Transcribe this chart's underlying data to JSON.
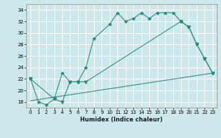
{
  "xlabel": "Humidex (Indice chaleur)",
  "bg_color": "#cce8ea",
  "grid_color": "#ffffff",
  "line_color": "#2e8b7a",
  "xlim": [
    -0.5,
    23.5
  ],
  "ylim": [
    17,
    35
  ],
  "yticks": [
    18,
    20,
    22,
    24,
    26,
    28,
    30,
    32,
    34
  ],
  "xticks": [
    0,
    1,
    2,
    3,
    4,
    5,
    6,
    7,
    8,
    9,
    10,
    11,
    12,
    13,
    14,
    15,
    16,
    17,
    18,
    19,
    20,
    21,
    22,
    23
  ],
  "line1_x": [
    0,
    1,
    2,
    3,
    4,
    5,
    6,
    7,
    8,
    10,
    11,
    12,
    13,
    14,
    15,
    16,
    17,
    18,
    19,
    20,
    21,
    22,
    23
  ],
  "line1_y": [
    22,
    18,
    17.5,
    18.5,
    23,
    21.5,
    21.5,
    24,
    29,
    31.5,
    33.5,
    32,
    32.5,
    33.5,
    32.5,
    33.5,
    33.5,
    33.5,
    32,
    31,
    28,
    25.5,
    23
  ],
  "line2_x": [
    0,
    3,
    4,
    5,
    6,
    7,
    19,
    20,
    21,
    22,
    23
  ],
  "line2_y": [
    22,
    18.5,
    18,
    21.5,
    21.5,
    21.5,
    32,
    31,
    28,
    25.5,
    23
  ],
  "line3_x": [
    0,
    23
  ],
  "line3_y": [
    18.2,
    23.0
  ],
  "marker1": "*",
  "marker2": "v",
  "marker_size1": 3,
  "marker_size2": 3,
  "linewidth": 0.8,
  "xlabel_fontsize": 6,
  "tick_fontsize": 5
}
